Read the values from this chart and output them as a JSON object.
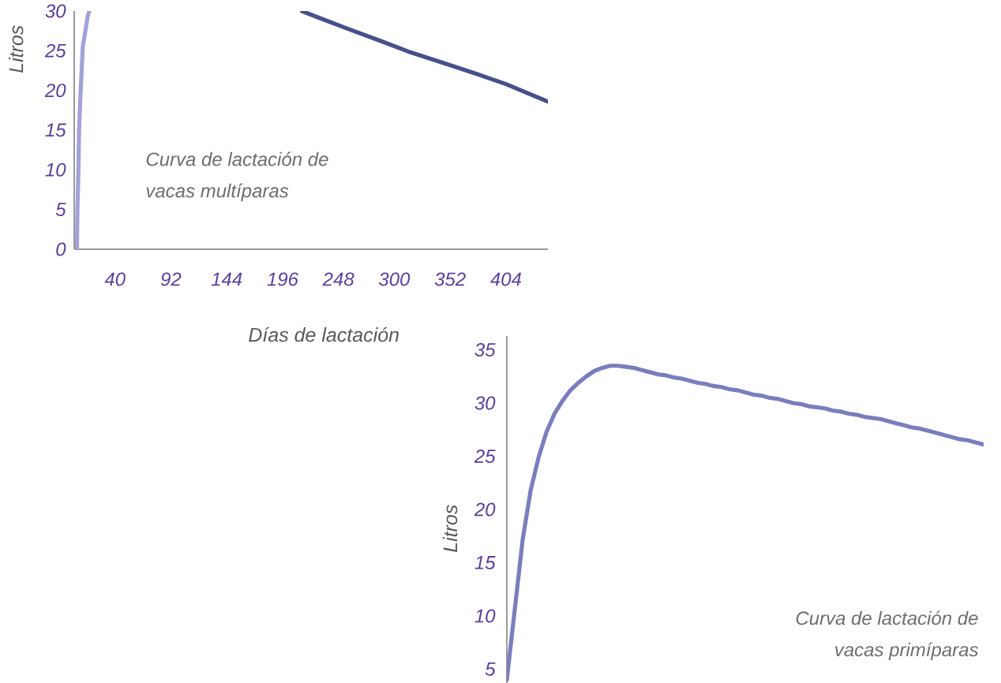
{
  "chart_data": [
    {
      "type": "line",
      "xlabel": "Días de lactación",
      "ylabel": "Litros",
      "annotations": [
        "Curva de lactación de vacas multíparas"
      ],
      "series": [
        {
          "color": "#a3a1d8",
          "x": [
            4.5,
            5,
            6,
            6.5,
            8,
            10,
            14.5,
            16
          ],
          "values": [
            0,
            5,
            10.5,
            15,
            20,
            25.5,
            29.3,
            30
          ]
        },
        {
          "color": "#46508a",
          "x": [
            214,
            227,
            256,
            286,
            315,
            345,
            374,
            404,
            443
          ],
          "values": [
            30,
            29.3,
            27.8,
            26.3,
            24.8,
            23.5,
            22.2,
            20.8,
            18.6
          ]
        }
      ],
      "xlim": [
        2,
        443
      ],
      "xticks": [
        40,
        92,
        144,
        196,
        248,
        300,
        352,
        404
      ],
      "ylim": [
        0,
        30
      ],
      "yticks": [
        0,
        5,
        10,
        15,
        20,
        25,
        30
      ]
    },
    {
      "type": "line",
      "ylabel": "Litros",
      "annotations": [
        "Curva de lactación de vacas primíparas"
      ],
      "categories": [
        null,
        null,
        null,
        null,
        null,
        null,
        null,
        null,
        null,
        null,
        null,
        null,
        null,
        null,
        null,
        null,
        null,
        null,
        null,
        null,
        null,
        null,
        null,
        null,
        null,
        null,
        null,
        null,
        null,
        null,
        null,
        null,
        null,
        null,
        null,
        null,
        null,
        null,
        null,
        null,
        null,
        null,
        null,
        null,
        null,
        null,
        null,
        null,
        null,
        null,
        null,
        null,
        null,
        null,
        null,
        null,
        null,
        null,
        null,
        null,
        null
      ],
      "values": [
        4.0,
        10.6,
        17.2,
        21.8,
        24.9,
        27.3,
        29.0,
        30.2,
        31.2,
        31.9,
        32.5,
        33.0,
        33.3,
        33.5,
        33.5,
        33.4,
        33.3,
        33.1,
        32.9,
        32.7,
        32.6,
        32.4,
        32.3,
        32.1,
        31.9,
        31.8,
        31.6,
        31.5,
        31.3,
        31.2,
        31.0,
        30.8,
        30.7,
        30.5,
        30.4,
        30.2,
        30.0,
        29.9,
        29.7,
        29.6,
        29.5,
        29.3,
        29.2,
        29.0,
        28.9,
        28.7,
        28.6,
        28.5,
        28.3,
        28.1,
        27.9,
        27.7,
        27.6,
        27.4,
        27.2,
        27.0,
        26.8,
        26.6,
        26.5,
        26.3,
        26.1
      ],
      "color": "#7b7ebd",
      "ylim": [
        3.7,
        36.3
      ],
      "yticks": [
        5,
        10,
        15,
        20,
        25,
        30,
        35
      ]
    }
  ]
}
